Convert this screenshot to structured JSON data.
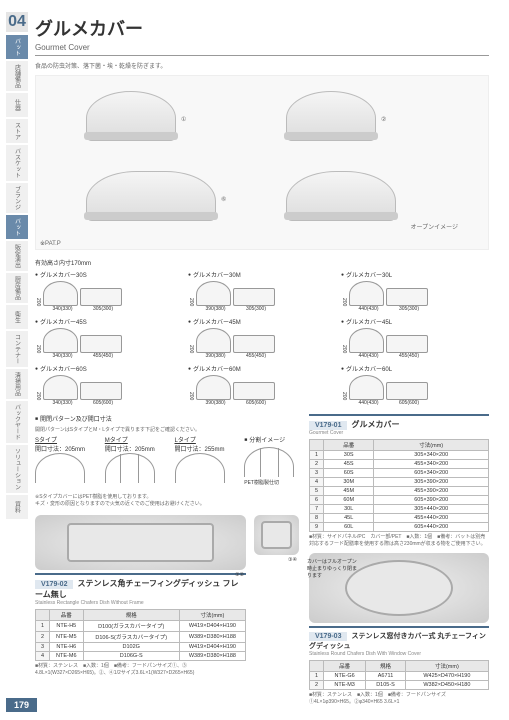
{
  "section_number": "04",
  "sidebar": {
    "items": [
      {
        "label": "バット",
        "active": true
      },
      {
        "label": "店舗備品"
      },
      {
        "label": "仕器"
      },
      {
        "label": "ストア"
      },
      {
        "label": "バスケット"
      },
      {
        "label": "ブランジ"
      },
      {
        "label": "バット",
        "active": true
      },
      {
        "label": "販促演出"
      },
      {
        "label": "厨房備品"
      },
      {
        "label": "衛生"
      },
      {
        "label": "コンテナー"
      },
      {
        "label": "清掃用品"
      },
      {
        "label": "バックヤード"
      },
      {
        "label": "ソリューション"
      },
      {
        "label": "資料"
      }
    ]
  },
  "title": "グルメカバー",
  "subtitle": "Gourmet Cover",
  "description": "食品の防虫対策、落下菌・埃・乾燥を防ぎます。",
  "hero": {
    "patp": "※PAT.P",
    "open_label": "オープンイメージ",
    "n1": "①",
    "n2": "②",
    "n3": "⑥"
  },
  "dim_note": "有効高さ内寸170mm",
  "dim_suffix": "( )内開口内寸",
  "dims": [
    {
      "name": "グルメカバー30S",
      "h": "200",
      "w1": "340(330)",
      "w2": "305(300)"
    },
    {
      "name": "グルメカバー30M",
      "h": "200",
      "w1": "390(380)",
      "w2": "305(300)"
    },
    {
      "name": "グルメカバー30L",
      "h": "200",
      "w1": "440(430)",
      "w2": "305(300)"
    },
    {
      "name": "グルメカバー45S",
      "h": "200",
      "w1": "340(330)",
      "w2": "455(450)"
    },
    {
      "name": "グルメカバー45M",
      "h": "200",
      "w1": "390(380)",
      "w2": "455(450)"
    },
    {
      "name": "グルメカバー45L",
      "h": "200",
      "w1": "440(430)",
      "w2": "455(450)"
    },
    {
      "name": "グルメカバー60S",
      "h": "200",
      "w1": "340(330)",
      "w2": "605(600)"
    },
    {
      "name": "グルメカバー60M",
      "h": "200",
      "w1": "390(380)",
      "w2": "605(600)"
    },
    {
      "name": "グルメカバー60L",
      "h": "200",
      "w1": "440(430)",
      "w2": "605(600)"
    }
  ],
  "opening": {
    "hdr": "開閉パターン及び開口寸法",
    "sub": "開閉パターンはSタイプとM・Lタイプで異ります下記をご確認ください。",
    "s": {
      "title": "Sタイプ",
      "sub": "開口寸法：205mm",
      "v": "205"
    },
    "m": {
      "title": "Mタイプ",
      "sub": "開口寸法：205mm",
      "v": "205"
    },
    "l": {
      "title": "Lタイプ",
      "sub": "開口寸法：255mm",
      "v": "255"
    },
    "div_hdr": "分割イメージ",
    "pet": "PET樹脂製仕切",
    "pet_note": "※SタイプカバーにはPET樹脂を使用しております。\nキズ・変形の原因となりますので火気の近くでのご使用はお避けください。"
  },
  "p1": {
    "code": "V179-01",
    "name": "グルメカバー",
    "name_en": "Gourmet Cover",
    "cols": [
      "",
      "品番",
      "寸法(mm)"
    ],
    "rows": [
      [
        "1",
        "30S",
        "305×340×200"
      ],
      [
        "2",
        "45S",
        "455×340×200"
      ],
      [
        "3",
        "60S",
        "605×340×200"
      ],
      [
        "4",
        "30M",
        "305×390×200"
      ],
      [
        "5",
        "45M",
        "455×390×200"
      ],
      [
        "6",
        "60M",
        "605×390×200"
      ],
      [
        "7",
        "30L",
        "305×440×200"
      ],
      [
        "8",
        "45L",
        "455×440×200"
      ],
      [
        "9",
        "60L",
        "605×440×200"
      ]
    ],
    "note": "■材質：サイドパネル/PC　カバー部/PET　■入数：1個　■備考：バットは別売\n対応するフード配膳車を使用する際は高さ230mmが収まる物をご使用下さい。"
  },
  "p2": {
    "code": "V179-02",
    "name": "ステンレス角チェーフィングディッシュ フレーム無し",
    "name_en": "Stainless Rectangle Chafers Dish Without Frame",
    "cols": [
      "",
      "品番",
      "規格",
      "寸法(mm)"
    ],
    "rows": [
      [
        "1",
        "NTE-H5",
        "D100(ガラスカバータイプ)",
        "W419×D404×H190"
      ],
      [
        "2",
        "NTE-M5",
        "D106-S(ガラスカバータイプ)",
        "W389×D380×H188"
      ],
      [
        "3",
        "NTE-H6",
        "D102G",
        "W419×D404×H190"
      ],
      [
        "4",
        "NTE-M6",
        "D106G-S",
        "W389×D380×H188"
      ]
    ],
    "note": "■材質：ステンレス　■入数：1個　■備考：フードパンサイズ①、③ 4.8L×1(W327×D265×H65)。②、④1/2サイズ3.6L×1(W327×D265×H65)",
    "img_label": "①②",
    "img_label2": "③④"
  },
  "p3": {
    "code": "V179-03",
    "name": "ステンレス窓付きカバー式 丸チェーフィングディッシュ",
    "name_en": "Stainless Round Chafers Dish With Window Cover",
    "cols": [
      "",
      "品番",
      "規格",
      "寸法(mm)"
    ],
    "rows": [
      [
        "1",
        "NTE-G6",
        "A6711",
        "W425×D470×H190"
      ],
      [
        "2",
        "NTE-M3",
        "D105-S",
        "W382×D450×H180"
      ]
    ],
    "note": "■材質：ステンレス　■入数：1個　■備考：フードパンサイズ①4L×1φ390×H65。②φ340×H65 3.6L×1",
    "caption": "カバーはフルオープン時止まりゆっくり閉まります"
  },
  "page_number": "179"
}
